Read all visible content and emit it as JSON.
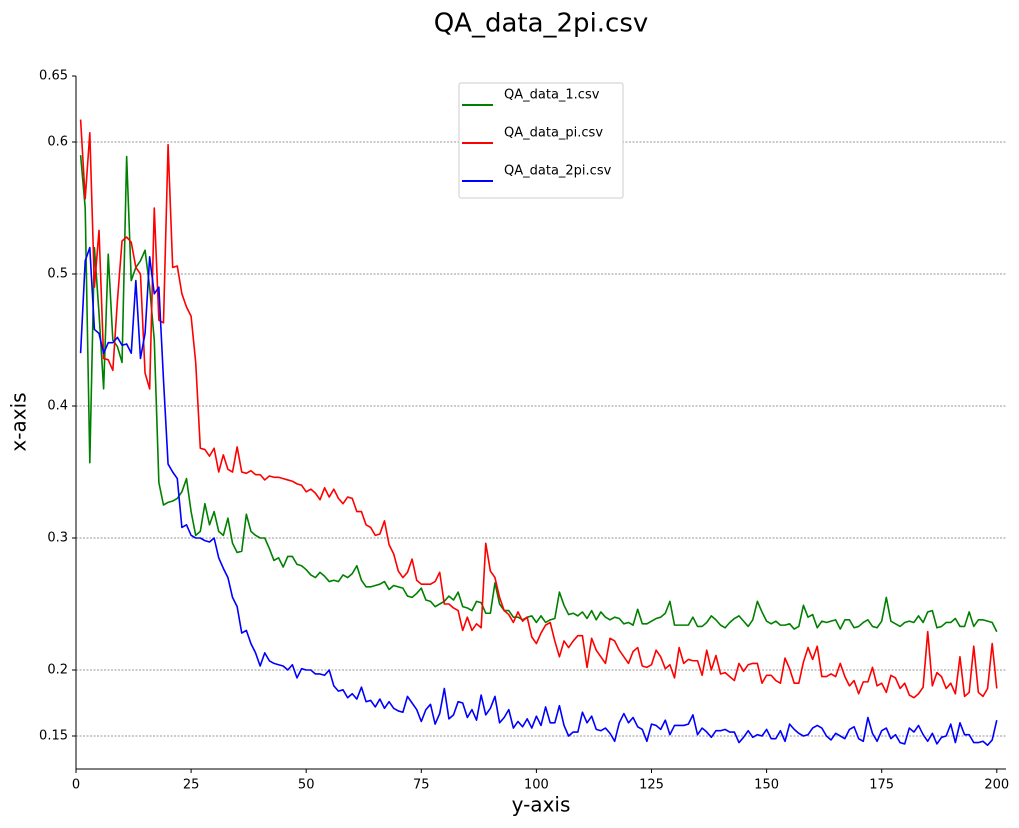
{
  "chart_data": {
    "type": "line",
    "title": "QA_data_2pi.csv",
    "x_label": "y-axis",
    "y_label": "x-axis",
    "x": [
      1,
      2,
      3,
      4,
      5,
      6,
      7,
      8,
      9,
      10,
      11,
      12,
      13,
      14,
      15,
      16,
      17,
      18,
      19,
      20,
      21,
      22,
      23,
      24,
      25,
      26,
      27,
      28,
      29,
      30,
      31,
      32,
      33,
      34,
      35,
      36,
      37,
      38,
      39,
      40,
      41,
      42,
      43,
      44,
      45,
      46,
      47,
      48,
      49,
      50,
      51,
      52,
      53,
      54,
      55,
      56,
      57,
      58,
      59,
      60,
      61,
      62,
      63,
      64,
      65,
      66,
      67,
      68,
      69,
      70,
      71,
      72,
      73,
      74,
      75,
      76,
      77,
      78,
      79,
      80,
      81,
      82,
      83,
      84,
      85,
      86,
      87,
      88,
      89,
      90,
      91,
      92,
      93,
      94,
      95,
      96,
      97,
      98,
      99,
      100,
      101,
      102,
      103,
      104,
      105,
      106,
      107,
      108,
      109,
      110,
      111,
      112,
      113,
      114,
      115,
      116,
      117,
      118,
      119,
      120,
      121,
      122,
      123,
      124,
      125,
      126,
      127,
      128,
      129,
      130,
      131,
      132,
      133,
      134,
      135,
      136,
      137,
      138,
      139,
      140,
      141,
      142,
      143,
      144,
      145,
      146,
      147,
      148,
      149,
      150,
      151,
      152,
      153,
      154,
      155,
      156,
      157,
      158,
      159,
      160,
      161,
      162,
      163,
      164,
      165,
      166,
      167,
      168,
      169,
      170,
      171,
      172,
      173,
      174,
      175,
      176,
      177,
      178,
      179,
      180,
      181,
      182,
      183,
      184,
      185,
      186,
      187,
      188,
      189,
      190,
      191,
      192,
      193,
      194,
      195,
      196,
      197,
      198,
      199,
      200
    ],
    "series": [
      {
        "name": "QA_data_1.csv",
        "color": "#008000",
        "values": [
          0.59,
          0.55,
          0.357,
          0.52,
          0.47,
          0.413,
          0.515,
          0.45,
          0.445,
          0.433,
          0.589,
          0.495,
          0.505,
          0.51,
          0.518,
          0.49,
          0.45,
          0.342,
          0.325,
          0.327,
          0.328,
          0.33,
          0.335,
          0.345,
          0.32,
          0.302,
          0.305,
          0.326,
          0.31,
          0.32,
          0.305,
          0.302,
          0.315,
          0.296,
          0.289,
          0.29,
          0.318,
          0.305,
          0.302,
          0.3,
          0.3,
          0.292,
          0.283,
          0.285,
          0.278,
          0.286,
          0.286,
          0.28,
          0.279,
          0.276,
          0.272,
          0.27,
          0.274,
          0.271,
          0.267,
          0.268,
          0.267,
          0.272,
          0.27,
          0.273,
          0.279,
          0.268,
          0.263,
          0.263,
          0.264,
          0.265,
          0.267,
          0.261,
          0.264,
          0.263,
          0.262,
          0.256,
          0.255,
          0.258,
          0.262,
          0.253,
          0.252,
          0.248,
          0.25,
          0.252,
          0.256,
          0.253,
          0.259,
          0.248,
          0.247,
          0.245,
          0.252,
          0.251,
          0.243,
          0.243,
          0.266,
          0.25,
          0.245,
          0.245,
          0.24,
          0.24,
          0.238,
          0.24,
          0.241,
          0.236,
          0.241,
          0.236,
          0.238,
          0.239,
          0.259,
          0.249,
          0.242,
          0.243,
          0.241,
          0.244,
          0.239,
          0.245,
          0.238,
          0.244,
          0.24,
          0.238,
          0.24,
          0.239,
          0.235,
          0.236,
          0.234,
          0.246,
          0.235,
          0.235,
          0.237,
          0.239,
          0.24,
          0.243,
          0.252,
          0.234,
          0.234,
          0.234,
          0.234,
          0.24,
          0.233,
          0.233,
          0.236,
          0.241,
          0.238,
          0.234,
          0.232,
          0.236,
          0.239,
          0.241,
          0.237,
          0.233,
          0.238,
          0.252,
          0.244,
          0.237,
          0.235,
          0.237,
          0.234,
          0.234,
          0.235,
          0.231,
          0.233,
          0.249,
          0.24,
          0.242,
          0.232,
          0.237,
          0.236,
          0.237,
          0.238,
          0.231,
          0.238,
          0.238,
          0.232,
          0.233,
          0.236,
          0.238,
          0.233,
          0.232,
          0.237,
          0.255,
          0.237,
          0.235,
          0.233,
          0.236,
          0.237,
          0.236,
          0.241,
          0.236,
          0.244,
          0.245,
          0.232,
          0.233,
          0.236,
          0.236,
          0.239,
          0.233,
          0.233,
          0.244,
          0.233,
          0.238,
          0.238,
          0.237,
          0.236,
          0.229
        ]
      },
      {
        "name": "QA_data_pi.csv",
        "color": "#ff0000",
        "values": [
          0.617,
          0.557,
          0.607,
          0.49,
          0.533,
          0.436,
          0.435,
          0.427,
          0.48,
          0.525,
          0.528,
          0.524,
          0.505,
          0.5,
          0.425,
          0.413,
          0.55,
          0.465,
          0.463,
          0.598,
          0.505,
          0.506,
          0.485,
          0.475,
          0.468,
          0.433,
          0.368,
          0.367,
          0.362,
          0.368,
          0.35,
          0.363,
          0.352,
          0.35,
          0.369,
          0.35,
          0.349,
          0.351,
          0.348,
          0.348,
          0.344,
          0.347,
          0.346,
          0.346,
          0.345,
          0.344,
          0.343,
          0.341,
          0.34,
          0.335,
          0.337,
          0.334,
          0.329,
          0.338,
          0.331,
          0.337,
          0.33,
          0.326,
          0.331,
          0.33,
          0.32,
          0.32,
          0.31,
          0.308,
          0.302,
          0.303,
          0.313,
          0.295,
          0.288,
          0.275,
          0.27,
          0.274,
          0.284,
          0.268,
          0.265,
          0.265,
          0.265,
          0.267,
          0.274,
          0.25,
          0.25,
          0.247,
          0.245,
          0.23,
          0.24,
          0.23,
          0.235,
          0.232,
          0.296,
          0.275,
          0.27,
          0.255,
          0.245,
          0.242,
          0.236,
          0.244,
          0.237,
          0.24,
          0.225,
          0.22,
          0.228,
          0.234,
          0.236,
          0.222,
          0.21,
          0.222,
          0.217,
          0.222,
          0.226,
          0.226,
          0.202,
          0.224,
          0.215,
          0.21,
          0.205,
          0.224,
          0.222,
          0.215,
          0.21,
          0.205,
          0.214,
          0.217,
          0.203,
          0.202,
          0.204,
          0.215,
          0.21,
          0.201,
          0.204,
          0.194,
          0.217,
          0.205,
          0.208,
          0.207,
          0.207,
          0.196,
          0.215,
          0.2,
          0.211,
          0.197,
          0.198,
          0.195,
          0.192,
          0.205,
          0.199,
          0.204,
          0.205,
          0.205,
          0.19,
          0.196,
          0.196,
          0.192,
          0.19,
          0.209,
          0.201,
          0.19,
          0.19,
          0.206,
          0.217,
          0.208,
          0.218,
          0.195,
          0.195,
          0.197,
          0.195,
          0.205,
          0.195,
          0.188,
          0.192,
          0.182,
          0.191,
          0.191,
          0.202,
          0.188,
          0.19,
          0.183,
          0.196,
          0.194,
          0.186,
          0.19,
          0.181,
          0.179,
          0.182,
          0.187,
          0.229,
          0.188,
          0.198,
          0.195,
          0.186,
          0.19,
          0.182,
          0.21,
          0.18,
          0.183,
          0.218,
          0.183,
          0.18,
          0.186,
          0.22,
          0.186
        ]
      },
      {
        "name": "QA_data_2pi.csv",
        "color": "#0000ff",
        "values": [
          0.44,
          0.51,
          0.52,
          0.458,
          0.455,
          0.44,
          0.448,
          0.448,
          0.452,
          0.446,
          0.447,
          0.44,
          0.495,
          0.436,
          0.455,
          0.513,
          0.485,
          0.49,
          0.42,
          0.356,
          0.35,
          0.345,
          0.308,
          0.31,
          0.302,
          0.3,
          0.3,
          0.298,
          0.297,
          0.3,
          0.285,
          0.277,
          0.27,
          0.255,
          0.248,
          0.228,
          0.23,
          0.22,
          0.213,
          0.203,
          0.213,
          0.207,
          0.205,
          0.204,
          0.203,
          0.2,
          0.204,
          0.194,
          0.201,
          0.2,
          0.2,
          0.197,
          0.197,
          0.196,
          0.2,
          0.188,
          0.184,
          0.185,
          0.179,
          0.182,
          0.178,
          0.187,
          0.176,
          0.177,
          0.172,
          0.178,
          0.171,
          0.176,
          0.171,
          0.169,
          0.168,
          0.18,
          0.175,
          0.17,
          0.161,
          0.17,
          0.174,
          0.159,
          0.167,
          0.186,
          0.163,
          0.166,
          0.176,
          0.175,
          0.164,
          0.17,
          0.162,
          0.181,
          0.166,
          0.171,
          0.18,
          0.16,
          0.164,
          0.17,
          0.156,
          0.161,
          0.157,
          0.163,
          0.156,
          0.165,
          0.158,
          0.172,
          0.16,
          0.16,
          0.173,
          0.158,
          0.15,
          0.153,
          0.153,
          0.168,
          0.16,
          0.165,
          0.155,
          0.154,
          0.156,
          0.152,
          0.146,
          0.16,
          0.167,
          0.16,
          0.164,
          0.157,
          0.155,
          0.146,
          0.159,
          0.158,
          0.155,
          0.162,
          0.151,
          0.158,
          0.158,
          0.158,
          0.159,
          0.166,
          0.151,
          0.156,
          0.153,
          0.149,
          0.154,
          0.154,
          0.155,
          0.153,
          0.153,
          0.145,
          0.149,
          0.154,
          0.149,
          0.151,
          0.15,
          0.155,
          0.148,
          0.148,
          0.154,
          0.146,
          0.159,
          0.155,
          0.152,
          0.15,
          0.151,
          0.156,
          0.158,
          0.156,
          0.15,
          0.147,
          0.152,
          0.15,
          0.148,
          0.155,
          0.157,
          0.148,
          0.146,
          0.164,
          0.152,
          0.146,
          0.154,
          0.156,
          0.148,
          0.151,
          0.145,
          0.144,
          0.156,
          0.153,
          0.158,
          0.151,
          0.146,
          0.152,
          0.144,
          0.149,
          0.15,
          0.159,
          0.145,
          0.16,
          0.151,
          0.151,
          0.145,
          0.145,
          0.146,
          0.143,
          0.147,
          0.162
        ]
      }
    ],
    "xlim": [
      0,
      202
    ],
    "xticks": [
      0,
      25,
      50,
      75,
      100,
      125,
      150,
      175,
      200
    ],
    "ylim": [
      0.125,
      0.65
    ],
    "yticks": [
      0.15,
      0.2,
      0.3,
      0.4,
      0.5,
      0.6,
      0.65
    ],
    "grid": true,
    "legend": "upper center"
  }
}
